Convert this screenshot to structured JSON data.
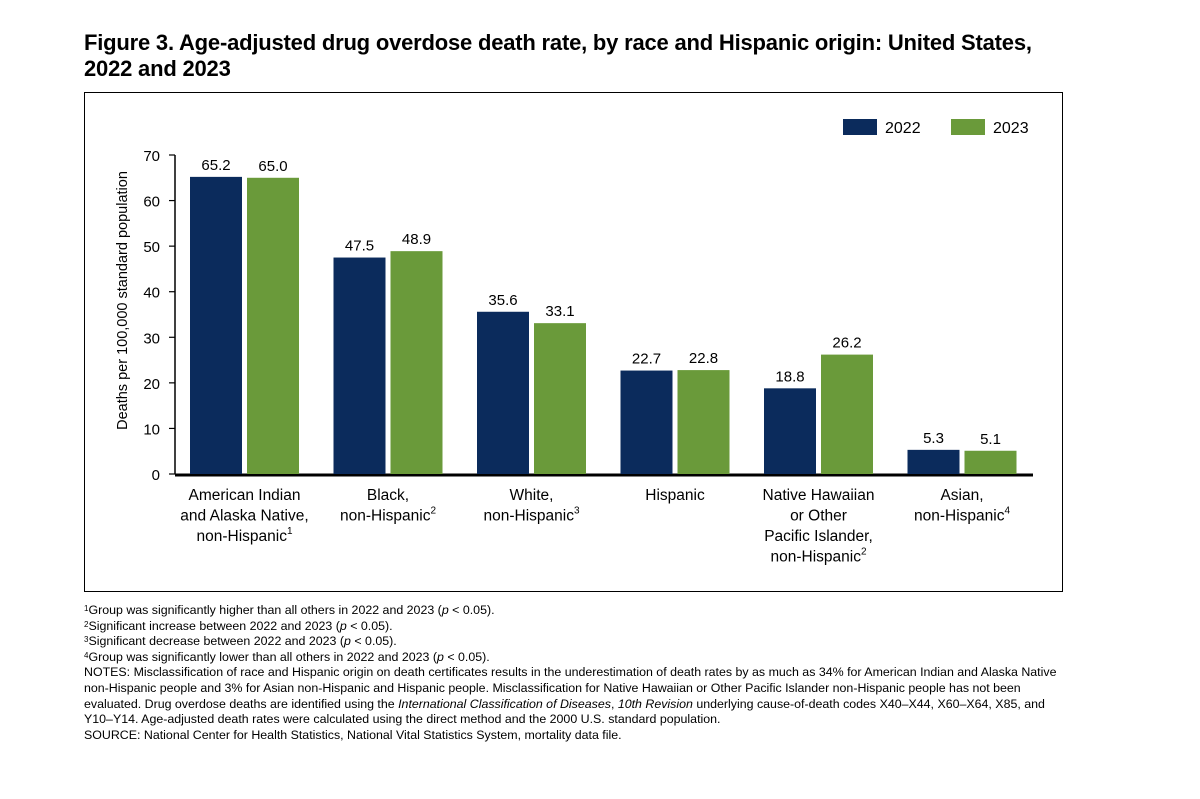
{
  "figure": {
    "title_line1": "Figure 3. Age-adjusted drug overdose death rate, by race and Hispanic origin: United States,",
    "title_line2": "2022 and 2023"
  },
  "colors": {
    "2022": "#0b2b5c",
    "2023": "#6a9a3a"
  },
  "chart_data": {
    "type": "bar",
    "title": "Age-adjusted drug overdose death rate, by race and Hispanic origin: United States, 2022 and 2023",
    "ylabel": "Deaths per 100,000 standard population",
    "xlabel": "",
    "ylim": [
      0,
      70
    ],
    "yticks": [
      "0",
      "10",
      "20",
      "30",
      "40",
      "50",
      "60",
      "70"
    ],
    "legend_position": "top-right",
    "categories": [
      {
        "lines": [
          "American Indian",
          "and Alaska Native,",
          "non-Hispanic"
        ],
        "sup": "1"
      },
      {
        "lines": [
          "Black,",
          "non-Hispanic"
        ],
        "sup": "2"
      },
      {
        "lines": [
          "White,",
          "non-Hispanic"
        ],
        "sup": "3"
      },
      {
        "lines": [
          "Hispanic"
        ],
        "sup": ""
      },
      {
        "lines": [
          "Native Hawaiian",
          "or Other",
          "Pacific Islander,",
          "non-Hispanic"
        ],
        "sup": "2"
      },
      {
        "lines": [
          "Asian,",
          "non-Hispanic"
        ],
        "sup": "4"
      }
    ],
    "series": [
      {
        "name": "2022",
        "values": [
          65.2,
          47.5,
          35.6,
          22.7,
          18.8,
          5.3
        ],
        "labels": [
          "65.2",
          "47.5",
          "35.6",
          "22.7",
          "18.8",
          "5.3"
        ]
      },
      {
        "name": "2023",
        "values": [
          65.0,
          48.9,
          33.1,
          22.8,
          26.2,
          5.1
        ],
        "labels": [
          "65.0",
          "48.9",
          "33.1",
          "22.8",
          "26.2",
          "5.1"
        ]
      }
    ]
  },
  "footnotes": {
    "fn1": {
      "sup": "1",
      "before": "Group was significantly higher than all others in 2022 and 2023 (",
      "p": "p",
      "after": " < 0.05)."
    },
    "fn2": {
      "sup": "2",
      "before": "Significant increase between 2022 and 2023 (",
      "p": "p",
      "after": " < 0.05)."
    },
    "fn3": {
      "sup": "3",
      "before": "Significant decrease between 2022 and 2023 (",
      "p": "p",
      "after": " < 0.05)."
    },
    "fn4": {
      "sup": "4",
      "before": "Group was significantly lower than all others in 2022 and 2023 (",
      "p": "p",
      "after": " < 0.05)."
    },
    "notes_a": "NOTES: Misclassification of race and Hispanic origin on death certificates results in the underestimation of death rates by as much as 34% for American Indian and Alaska Native non-Hispanic people and 3% for Asian non-Hispanic and Hispanic people. Misclassification for Native Hawaiian or Other Pacific Islander non-Hispanic people has not been evaluated. Drug overdose deaths are identified using the ",
    "notes_icd": "International Classification of Diseases",
    "notes_comma": ", ",
    "notes_rev": "10th Revision",
    "notes_b": " underlying cause-of-death codes X40–X44, X60–X64, X85, and Y10–Y14. Age-adjusted death rates were calculated using the direct method and the 2000 U.S. standard population.",
    "source": "SOURCE: National Center for Health Statistics, National Vital Statistics System, mortality data file."
  }
}
